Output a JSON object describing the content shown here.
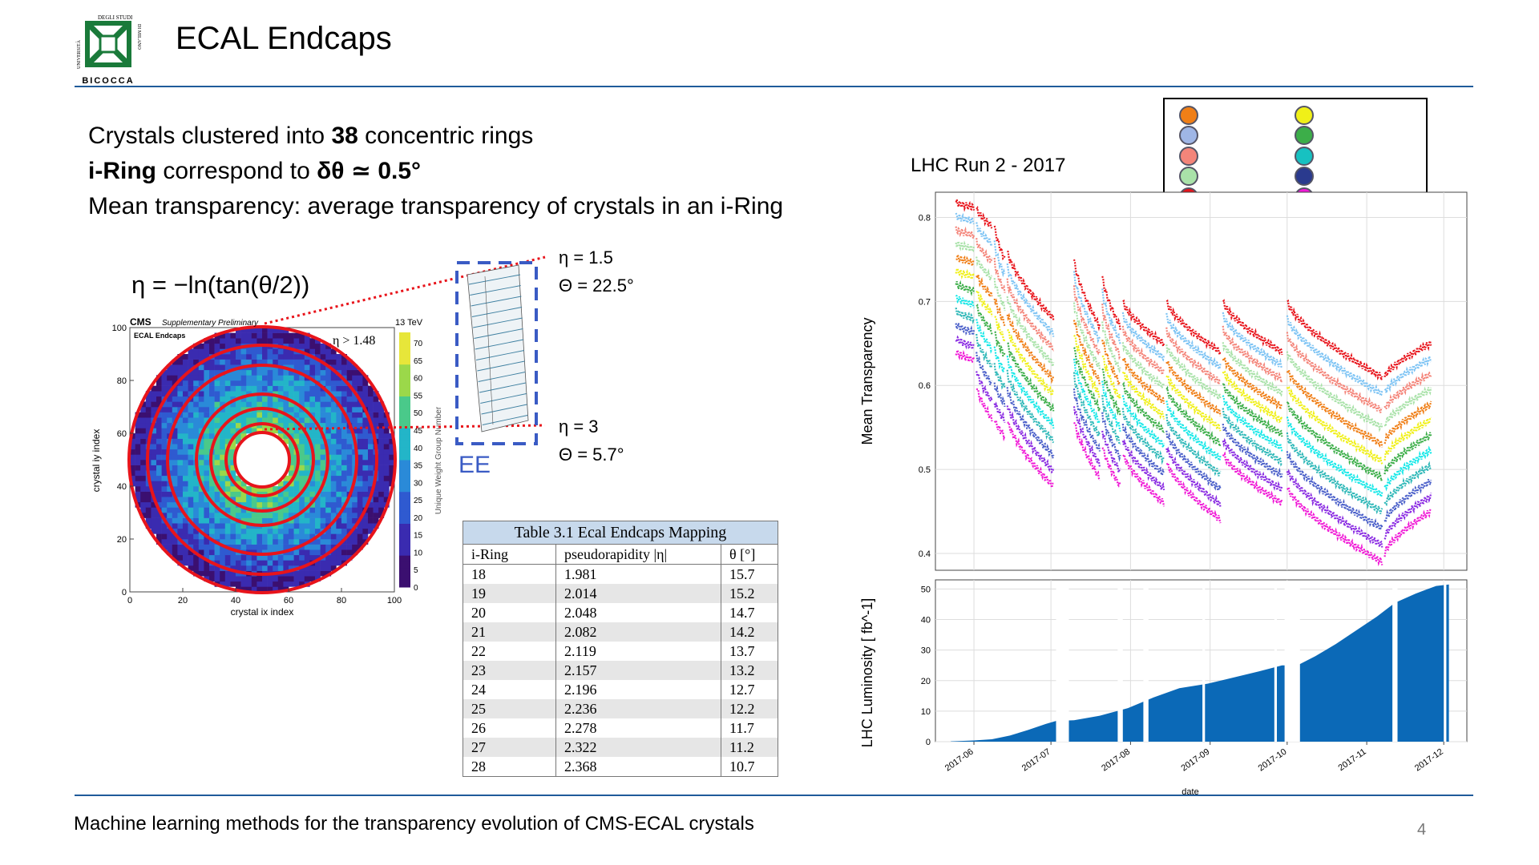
{
  "slide": {
    "title": "ECAL Endcaps",
    "logo_text": {
      "top": "DEGLI STUDI",
      "side1": "UNIVERSITÀ",
      "side2": "DI MILANO",
      "bottom": "BICOCCA"
    },
    "bullets": [
      {
        "pre": "Crystals clustered into ",
        "bold": "38",
        "post": " concentric rings"
      },
      {
        "pre": "",
        "bold": "i-Ring",
        "mid": " correspond to ",
        "bold2": "δθ ≃ 0.5°",
        "post": ""
      },
      {
        "pre": "Mean transparency: average transparency of crystals in an i-Ring",
        "bold": "",
        "post": ""
      }
    ],
    "formula": "η = −ln(tan(θ/2))",
    "eta_top": "η = 1.5",
    "theta_top": "Θ = 22.5°",
    "eta_bottom": "η = 3",
    "theta_bottom": "Θ = 5.7°",
    "ee_label": "EE",
    "footer": "Machine learning methods for the transparency evolution of CMS-ECAL crystals",
    "page_number": "4",
    "colors": {
      "rule": "#1f5b9a",
      "ring": "#e8141b",
      "zoom_line": "#e8141b",
      "ee_box": "#3a5bc4",
      "table_header": "#c7d9ec"
    }
  },
  "cms_plot": {
    "experiment": "CMS",
    "status": "Supplementary Preliminary",
    "energy": "13 TeV",
    "region": "ECAL Endcaps",
    "eta_cut": "η > 1.48",
    "xlabel": "crystal ix index",
    "ylabel": "crystal iy index",
    "zlabel": "Unique Weight Group Number",
    "xticks": [
      "0",
      "20",
      "40",
      "60",
      "80",
      "100"
    ],
    "yticks": [
      "0",
      "20",
      "40",
      "60",
      "80",
      "100"
    ],
    "zticks": [
      "0",
      "5",
      "10",
      "15",
      "20",
      "25",
      "30",
      "35",
      "40",
      "45",
      "50",
      "55",
      "60",
      "65",
      "70"
    ]
  },
  "table": {
    "caption": "Table 3.1 Ecal Endcaps Mapping",
    "headers": [
      "i-Ring",
      "pseudorapidity |η|",
      "θ [°]"
    ],
    "rows": [
      [
        "18",
        "1.981",
        "15.7"
      ],
      [
        "19",
        "2.014",
        "15.2"
      ],
      [
        "20",
        "2.048",
        "14.7"
      ],
      [
        "21",
        "2.082",
        "14.2"
      ],
      [
        "22",
        "2.119",
        "13.7"
      ],
      [
        "23",
        "2.157",
        "13.2"
      ],
      [
        "24",
        "2.196",
        "12.7"
      ],
      [
        "25",
        "2.236",
        "12.2"
      ],
      [
        "26",
        "2.278",
        "11.7"
      ],
      [
        "27",
        "2.322",
        "11.2"
      ],
      [
        "28",
        "2.368",
        "10.7"
      ]
    ]
  },
  "chart_title": "LHC Run 2 - 2017",
  "legend": {
    "colors": [
      "#f07f17",
      "#9fb6e6",
      "#f4857a",
      "#a9e2a9",
      "#e8141b",
      "#4a5fc9",
      "#f0f018",
      "#3cae49",
      "#17c1c1",
      "#2a3a8e",
      "#f019d6"
    ]
  },
  "chart_data": [
    {
      "type": "scatter",
      "title": "",
      "xlabel": "",
      "ylabel": "Mean Transparency",
      "ylim": [
        0.38,
        0.83
      ],
      "yticks": [
        0.4,
        0.5,
        0.6,
        0.7,
        0.8
      ],
      "xlim": [
        "2017-05-17",
        "2017-12-10"
      ],
      "grid": true,
      "series_colors": [
        "#e8141b",
        "#7ec4f4",
        "#f4857a",
        "#a9e2a9",
        "#f07f17",
        "#f0f018",
        "#3cae49",
        "#17e8e8",
        "#2fb8b8",
        "#4a5fc9",
        "#8a2be2",
        "#f019d6"
      ],
      "segments": [
        {
          "start": "2017-05-25",
          "end": "2017-06-01",
          "top_start": 0.818,
          "top_end": 0.812,
          "bottom_start": 0.64,
          "bottom_end": 0.63
        },
        {
          "start": "2017-06-02",
          "end": "2017-06-08",
          "top_start": 0.81,
          "top_end": 0.79,
          "bottom_start": 0.6,
          "bottom_end": 0.56
        },
        {
          "start": "2017-06-09",
          "end": "2017-06-13",
          "top_start": 0.79,
          "top_end": 0.75,
          "bottom_start": 0.56,
          "bottom_end": 0.54
        },
        {
          "start": "2017-06-14",
          "end": "2017-07-02",
          "top_start": 0.76,
          "top_end": 0.68,
          "bottom_start": 0.56,
          "bottom_end": 0.48
        },
        {
          "start": "2017-07-10",
          "end": "2017-07-20",
          "top_start": 0.75,
          "top_end": 0.67,
          "bottom_start": 0.56,
          "bottom_end": 0.49
        },
        {
          "start": "2017-07-21",
          "end": "2017-07-28",
          "top_start": 0.73,
          "top_end": 0.67,
          "bottom_start": 0.53,
          "bottom_end": 0.48
        },
        {
          "start": "2017-07-29",
          "end": "2017-08-14",
          "top_start": 0.7,
          "top_end": 0.65,
          "bottom_start": 0.52,
          "bottom_end": 0.46
        },
        {
          "start": "2017-08-15",
          "end": "2017-09-05",
          "top_start": 0.7,
          "top_end": 0.64,
          "bottom_start": 0.51,
          "bottom_end": 0.44
        },
        {
          "start": "2017-09-06",
          "end": "2017-09-29",
          "top_start": 0.7,
          "top_end": 0.64,
          "bottom_start": 0.52,
          "bottom_end": 0.46
        },
        {
          "start": "2017-10-01",
          "end": "2017-11-07",
          "top_start": 0.7,
          "top_end": 0.61,
          "bottom_start": 0.48,
          "bottom_end": 0.39
        },
        {
          "start": "2017-11-08",
          "end": "2017-11-26",
          "top_start": 0.61,
          "top_end": 0.65,
          "bottom_start": 0.4,
          "bottom_end": 0.45
        }
      ]
    },
    {
      "type": "bar",
      "title": "",
      "xlabel": "date",
      "ylabel": "LHC Luminosity [ fb^-1]",
      "ylim": [
        0,
        53
      ],
      "yticks": [
        0,
        10,
        20,
        30,
        40,
        50
      ],
      "xlim": [
        "2017-05-17",
        "2017-12-10"
      ],
      "xticks": [
        "2017-06",
        "2017-07",
        "2017-08",
        "2017-09",
        "2017-10",
        "2017-11",
        "2017-12"
      ],
      "color": "#0b69b7",
      "cumulative": [
        [
          "2017-05-23",
          0.1
        ],
        [
          "2017-06-01",
          0.4
        ],
        [
          "2017-06-08",
          0.8
        ],
        [
          "2017-06-15",
          2.0
        ],
        [
          "2017-06-22",
          3.8
        ],
        [
          "2017-06-29",
          5.8
        ],
        [
          "2017-07-03",
          6.8
        ],
        [
          "2017-07-10",
          7.0
        ],
        [
          "2017-07-20",
          8.5
        ],
        [
          "2017-07-31",
          11.0
        ],
        [
          "2017-08-10",
          14.5
        ],
        [
          "2017-08-20",
          17.5
        ],
        [
          "2017-08-31",
          19.0
        ],
        [
          "2017-09-10",
          21.0
        ],
        [
          "2017-09-20",
          23.0
        ],
        [
          "2017-09-29",
          25.0
        ],
        [
          "2017-10-05",
          25.0
        ],
        [
          "2017-10-12",
          28.0
        ],
        [
          "2017-10-20",
          32.0
        ],
        [
          "2017-10-28",
          36.5
        ],
        [
          "2017-11-05",
          41.0
        ],
        [
          "2017-11-12",
          45.5
        ],
        [
          "2017-11-20",
          48.5
        ],
        [
          "2017-11-28",
          51.0
        ],
        [
          "2017-12-03",
          51.5
        ]
      ],
      "gaps": [
        [
          "2017-07-03",
          "2017-07-08"
        ],
        [
          "2017-07-27",
          "2017-07-29"
        ],
        [
          "2017-08-06",
          "2017-08-08"
        ],
        [
          "2017-08-29",
          "2017-08-30"
        ],
        [
          "2017-09-26",
          "2017-09-27"
        ],
        [
          "2017-09-30",
          "2017-10-06"
        ],
        [
          "2017-11-11",
          "2017-11-13"
        ],
        [
          "2017-12-01",
          "2017-12-02"
        ]
      ]
    }
  ]
}
